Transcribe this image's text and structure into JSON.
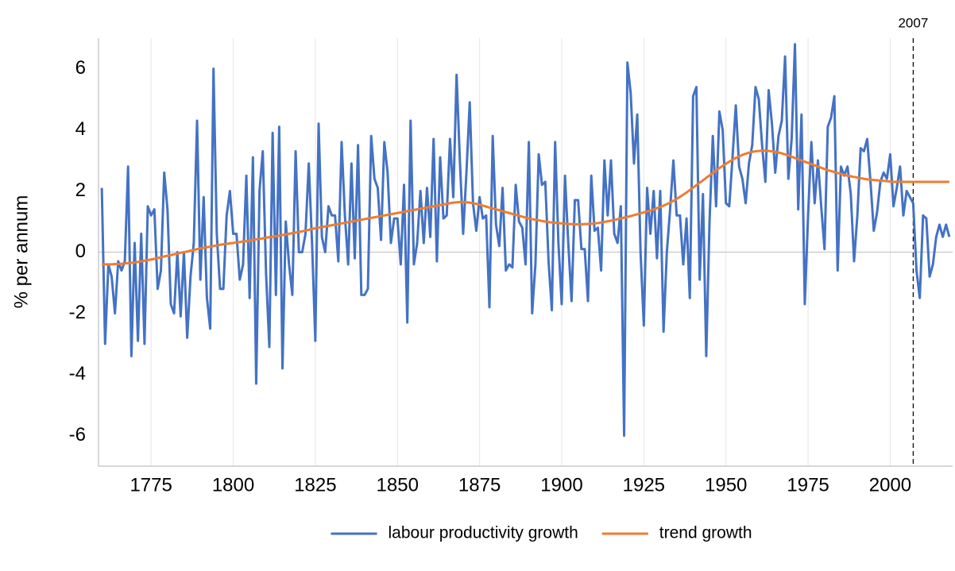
{
  "chart_data": {
    "type": "line",
    "y_label": "% per annum",
    "x": [
      1760,
      1761,
      1762,
      1763,
      1764,
      1765,
      1766,
      1767,
      1768,
      1769,
      1770,
      1771,
      1772,
      1773,
      1774,
      1775,
      1776,
      1777,
      1778,
      1779,
      1780,
      1781,
      1782,
      1783,
      1784,
      1785,
      1786,
      1787,
      1788,
      1789,
      1790,
      1791,
      1792,
      1793,
      1794,
      1795,
      1796,
      1797,
      1798,
      1799,
      1800,
      1801,
      1802,
      1803,
      1804,
      1805,
      1806,
      1807,
      1808,
      1809,
      1810,
      1811,
      1812,
      1813,
      1814,
      1815,
      1816,
      1817,
      1818,
      1819,
      1820,
      1821,
      1822,
      1823,
      1824,
      1825,
      1826,
      1827,
      1828,
      1829,
      1830,
      1831,
      1832,
      1833,
      1834,
      1835,
      1836,
      1837,
      1838,
      1839,
      1840,
      1841,
      1842,
      1843,
      1844,
      1845,
      1846,
      1847,
      1848,
      1849,
      1850,
      1851,
      1852,
      1853,
      1854,
      1855,
      1856,
      1857,
      1858,
      1859,
      1860,
      1861,
      1862,
      1863,
      1864,
      1865,
      1866,
      1867,
      1868,
      1869,
      1870,
      1871,
      1872,
      1873,
      1874,
      1875,
      1876,
      1877,
      1878,
      1879,
      1880,
      1881,
      1882,
      1883,
      1884,
      1885,
      1886,
      1887,
      1888,
      1889,
      1890,
      1891,
      1892,
      1893,
      1894,
      1895,
      1896,
      1897,
      1898,
      1899,
      1900,
      1901,
      1902,
      1903,
      1904,
      1905,
      1906,
      1907,
      1908,
      1909,
      1910,
      1911,
      1912,
      1913,
      1914,
      1915,
      1916,
      1917,
      1918,
      1919,
      1920,
      1921,
      1922,
      1923,
      1924,
      1925,
      1926,
      1927,
      1928,
      1929,
      1930,
      1931,
      1932,
      1933,
      1934,
      1935,
      1936,
      1937,
      1938,
      1939,
      1940,
      1941,
      1942,
      1943,
      1944,
      1945,
      1946,
      1947,
      1948,
      1949,
      1950,
      1951,
      1952,
      1953,
      1954,
      1955,
      1956,
      1957,
      1958,
      1959,
      1960,
      1961,
      1962,
      1963,
      1964,
      1965,
      1966,
      1967,
      1968,
      1969,
      1970,
      1971,
      1972,
      1973,
      1974,
      1975,
      1976,
      1977,
      1978,
      1979,
      1980,
      1981,
      1982,
      1983,
      1984,
      1985,
      1986,
      1987,
      1988,
      1989,
      1990,
      1991,
      1992,
      1993,
      1994,
      1995,
      1996,
      1997,
      1998,
      1999,
      2000,
      2001,
      2002,
      2003,
      2004,
      2005,
      2006,
      2007,
      2008,
      2009,
      2010,
      2011,
      2012,
      2013,
      2014,
      2015,
      2016,
      2017,
      2018
    ],
    "series": [
      {
        "name": "labour productivity growth",
        "color": "#4472c4",
        "values": [
          2.1,
          -3.0,
          -0.4,
          -0.8,
          -2.0,
          -0.3,
          -0.6,
          -0.3,
          2.8,
          -3.4,
          0.3,
          -2.9,
          0.6,
          -3.0,
          1.5,
          1.2,
          1.4,
          -1.2,
          -0.6,
          2.6,
          1.4,
          -1.7,
          -2.0,
          0.0,
          -2.1,
          0.0,
          -2.8,
          -0.8,
          0.3,
          4.3,
          -0.9,
          1.8,
          -1.5,
          -2.5,
          6.0,
          0.6,
          -1.2,
          -1.2,
          1.2,
          2.0,
          0.6,
          0.6,
          -0.9,
          -0.4,
          2.5,
          -1.5,
          3.1,
          -4.3,
          2.0,
          3.3,
          -0.7,
          -3.1,
          3.9,
          -1.4,
          4.1,
          -3.8,
          1.0,
          -0.4,
          -1.4,
          3.3,
          0.0,
          0.0,
          0.6,
          2.9,
          0.3,
          -2.9,
          4.2,
          0.5,
          0.0,
          1.5,
          1.2,
          1.2,
          -0.3,
          3.6,
          1.2,
          -0.4,
          2.9,
          -0.2,
          3.5,
          -1.4,
          -1.4,
          -1.2,
          3.8,
          2.4,
          2.1,
          0.4,
          3.6,
          2.6,
          0.3,
          1.1,
          1.1,
          -0.4,
          2.2,
          -2.3,
          4.3,
          -0.4,
          0.3,
          2.0,
          0.3,
          2.1,
          0.5,
          3.7,
          -0.3,
          3.1,
          1.1,
          1.2,
          3.7,
          1.8,
          5.8,
          3.0,
          0.6,
          2.6,
          4.9,
          1.6,
          0.7,
          1.8,
          1.1,
          1.2,
          -1.8,
          3.8,
          0.9,
          0.2,
          2.1,
          -0.6,
          -0.4,
          -0.5,
          2.2,
          1.0,
          0.8,
          -0.4,
          3.6,
          -2.0,
          -0.4,
          3.2,
          2.2,
          2.3,
          -0.3,
          -1.9,
          3.6,
          0.3,
          -1.7,
          2.5,
          0.3,
          -1.6,
          1.7,
          1.7,
          0.1,
          0.1,
          -1.6,
          2.5,
          0.7,
          0.8,
          -0.6,
          3.0,
          1.2,
          3.0,
          0.6,
          0.3,
          1.5,
          -6.0,
          6.2,
          5.2,
          2.9,
          4.5,
          0.0,
          -2.4,
          2.1,
          0.6,
          2.0,
          -0.2,
          2.0,
          -2.6,
          0.0,
          1.4,
          3.0,
          1.2,
          1.2,
          -0.4,
          1.1,
          -1.5,
          5.1,
          5.4,
          -0.9,
          1.9,
          -3.4,
          1.0,
          3.8,
          1.5,
          4.6,
          4.0,
          1.6,
          1.5,
          3.1,
          4.8,
          2.8,
          2.4,
          1.6,
          2.9,
          3.5,
          5.4,
          5.0,
          3.5,
          2.3,
          5.3,
          4.2,
          2.6,
          3.8,
          4.3,
          6.4,
          2.4,
          3.7,
          6.8,
          1.4,
          4.5,
          -1.7,
          1.2,
          3.6,
          1.6,
          3.0,
          1.5,
          0.1,
          4.1,
          4.4,
          5.1,
          -0.6,
          2.8,
          2.5,
          2.8,
          1.9,
          -0.3,
          1.2,
          3.4,
          3.3,
          3.7,
          2.3,
          0.7,
          1.3,
          2.3,
          2.6,
          2.4,
          3.2,
          1.5,
          2.1,
          2.8,
          1.2,
          2.0,
          1.8,
          1.6,
          -0.6,
          -1.5,
          1.2,
          1.1,
          -0.8,
          -0.4,
          0.5,
          0.9,
          0.5,
          0.9,
          0.5
        ]
      },
      {
        "name": "trend growth",
        "color": "#ed7d31",
        "values": [
          -0.4,
          -0.4,
          -0.4,
          -0.4,
          -0.39,
          -0.39,
          -0.38,
          -0.37,
          -0.36,
          -0.35,
          -0.34,
          -0.32,
          -0.3,
          -0.28,
          -0.26,
          -0.24,
          -0.22,
          -0.19,
          -0.17,
          -0.14,
          -0.12,
          -0.1,
          -0.07,
          -0.05,
          -0.02,
          0.0,
          0.02,
          0.05,
          0.07,
          0.1,
          0.12,
          0.14,
          0.16,
          0.18,
          0.2,
          0.22,
          0.24,
          0.26,
          0.27,
          0.29,
          0.3,
          0.32,
          0.33,
          0.35,
          0.36,
          0.38,
          0.4,
          0.42,
          0.43,
          0.45,
          0.47,
          0.49,
          0.5,
          0.52,
          0.54,
          0.56,
          0.58,
          0.6,
          0.62,
          0.64,
          0.66,
          0.68,
          0.71,
          0.73,
          0.76,
          0.78,
          0.8,
          0.82,
          0.84,
          0.86,
          0.88,
          0.9,
          0.92,
          0.94,
          0.96,
          0.98,
          1.0,
          1.02,
          1.04,
          1.06,
          1.08,
          1.1,
          1.12,
          1.14,
          1.16,
          1.18,
          1.2,
          1.22,
          1.24,
          1.26,
          1.28,
          1.3,
          1.32,
          1.34,
          1.36,
          1.38,
          1.4,
          1.42,
          1.44,
          1.46,
          1.48,
          1.5,
          1.52,
          1.54,
          1.56,
          1.58,
          1.6,
          1.62,
          1.63,
          1.64,
          1.64,
          1.63,
          1.62,
          1.6,
          1.58,
          1.55,
          1.52,
          1.49,
          1.46,
          1.43,
          1.4,
          1.37,
          1.34,
          1.31,
          1.28,
          1.25,
          1.22,
          1.19,
          1.16,
          1.13,
          1.1,
          1.08,
          1.06,
          1.04,
          1.02,
          1.0,
          0.98,
          0.97,
          0.96,
          0.95,
          0.94,
          0.93,
          0.92,
          0.92,
          0.91,
          0.91,
          0.91,
          0.92,
          0.92,
          0.93,
          0.94,
          0.95,
          0.97,
          0.99,
          1.01,
          1.03,
          1.05,
          1.08,
          1.1,
          1.13,
          1.15,
          1.18,
          1.21,
          1.24,
          1.27,
          1.3,
          1.33,
          1.36,
          1.4,
          1.44,
          1.48,
          1.52,
          1.57,
          1.62,
          1.68,
          1.74,
          1.81,
          1.88,
          1.95,
          2.03,
          2.11,
          2.19,
          2.27,
          2.35,
          2.43,
          2.51,
          2.59,
          2.67,
          2.75,
          2.82,
          2.89,
          2.96,
          3.02,
          3.08,
          3.13,
          3.18,
          3.22,
          3.25,
          3.28,
          3.3,
          3.31,
          3.32,
          3.32,
          3.31,
          3.3,
          3.28,
          3.26,
          3.23,
          3.2,
          3.16,
          3.12,
          3.08,
          3.04,
          3.0,
          2.96,
          2.92,
          2.88,
          2.84,
          2.8,
          2.76,
          2.72,
          2.68,
          2.65,
          2.62,
          2.59,
          2.56,
          2.53,
          2.5,
          2.48,
          2.46,
          2.44,
          2.42,
          2.4,
          2.38,
          2.37,
          2.36,
          2.35,
          2.34,
          2.33,
          2.32,
          2.31,
          2.3,
          2.3,
          2.3,
          2.3,
          2.3,
          2.3,
          2.3,
          2.3,
          2.3,
          2.3,
          2.3,
          2.3,
          2.3,
          2.3,
          2.3,
          2.3,
          2.3,
          2.3
        ]
      }
    ],
    "xlim": [
      1759,
      2019
    ],
    "xticks": [
      1775,
      1800,
      1825,
      1850,
      1875,
      1900,
      1925,
      1950,
      1975,
      2000
    ],
    "ylim": [
      -7,
      7
    ],
    "yticks": [
      -6,
      -4,
      -2,
      0,
      2,
      4,
      6
    ],
    "grid": "x",
    "legend": "bottom",
    "annotations": [
      {
        "x": 2007,
        "label": "2007"
      }
    ]
  }
}
